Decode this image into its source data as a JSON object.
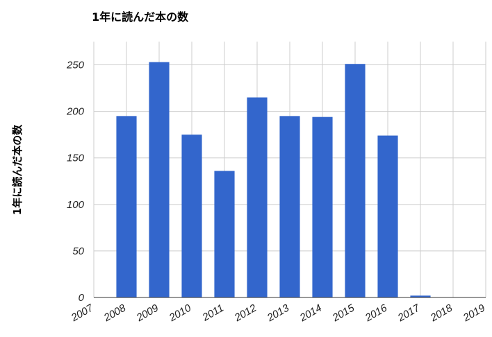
{
  "chart_data": {
    "type": "bar",
    "title": "1年に読んだ本の数",
    "ylabel": "1年に読んだ本の数",
    "xlabel": "",
    "categories": [
      "2008",
      "2009",
      "2010",
      "2011",
      "2012",
      "2013",
      "2014",
      "2015",
      "2016",
      "2017"
    ],
    "values": [
      195,
      253,
      175,
      136,
      215,
      195,
      194,
      251,
      174,
      2
    ],
    "x_ticks": [
      "2007",
      "2008",
      "2009",
      "2010",
      "2011",
      "2012",
      "2013",
      "2014",
      "2015",
      "2016",
      "2017",
      "2018",
      "2019"
    ],
    "y_ticks": [
      0,
      50,
      100,
      150,
      200,
      250
    ],
    "ylim": [
      0,
      275
    ],
    "grid": true,
    "bar_color": "#3366cc"
  }
}
